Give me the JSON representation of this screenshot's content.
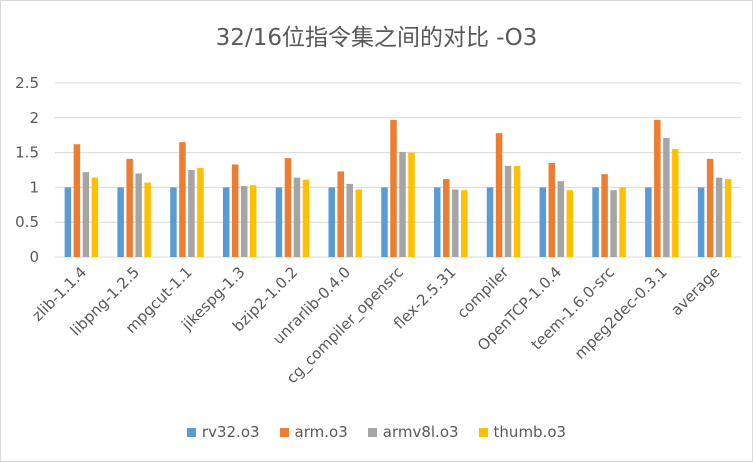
{
  "chart_data": {
    "type": "bar",
    "title": "32/16位指令集之间的对比 -O3",
    "categories": [
      "zlib-1.1.4",
      "libpng-1.2.5",
      "mpgcut-1.1",
      "jikespg-1.3",
      "bzip2-1.0.2",
      "unrarlib-0.4.0",
      "cg_compiler_opensrc",
      "flex-2.5.31",
      "compiler",
      "OpenTCP-1.0.4",
      "teem-1.6.0-src",
      "mpeg2dec-0.3.1",
      "average"
    ],
    "series": [
      {
        "name": "rv32.o3",
        "color": "#5b9bd5",
        "values": [
          1.0,
          1.0,
          1.0,
          1.0,
          1.0,
          1.0,
          1.0,
          1.0,
          1.0,
          1.0,
          1.0,
          1.0,
          1.0
        ]
      },
      {
        "name": "arm.o3",
        "color": "#ed7d31",
        "values": [
          1.62,
          1.41,
          1.65,
          1.33,
          1.42,
          1.23,
          1.97,
          1.12,
          1.78,
          1.35,
          1.19,
          1.97,
          1.41
        ]
      },
      {
        "name": "armv8l.o3",
        "color": "#a5a5a5",
        "values": [
          1.22,
          1.2,
          1.25,
          1.02,
          1.14,
          1.05,
          1.51,
          0.97,
          1.31,
          1.09,
          0.96,
          1.71,
          1.14
        ]
      },
      {
        "name": "thumb.o3",
        "color": "#ffc000",
        "values": [
          1.14,
          1.07,
          1.28,
          1.03,
          1.11,
          0.97,
          1.5,
          0.96,
          1.31,
          0.96,
          1.0,
          1.55,
          1.12
        ]
      }
    ],
    "yticks": [
      "0",
      "0.5",
      "1",
      "1.5",
      "2",
      "2.5"
    ],
    "ylim": [
      0,
      2.5
    ],
    "grid": true,
    "legend_position": "bottom"
  }
}
